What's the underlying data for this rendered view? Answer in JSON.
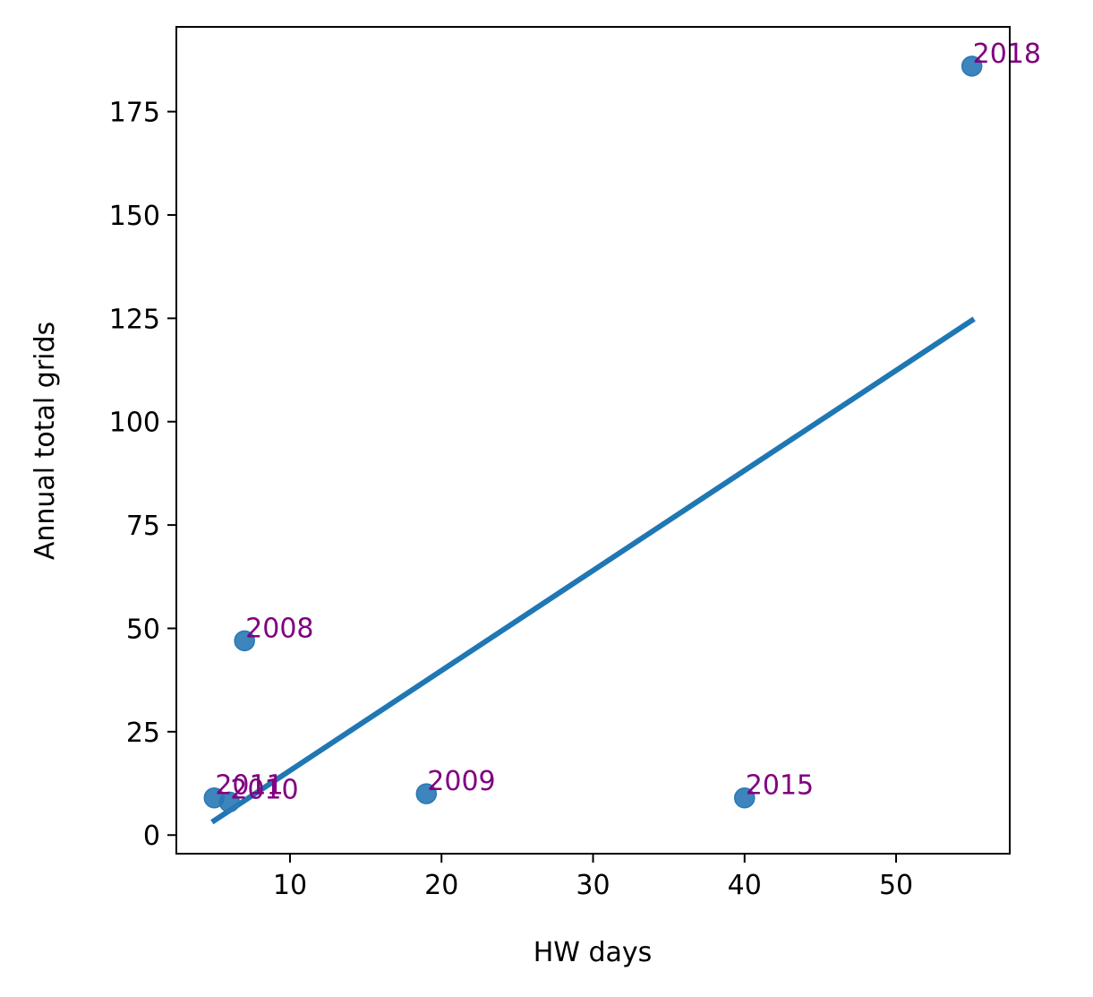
{
  "chart_data": {
    "type": "scatter",
    "title": "",
    "xlabel": "HW days",
    "ylabel": "Annual total grids",
    "xlim": [
      2.5,
      57.5
    ],
    "ylim": [
      -4.5,
      195.5
    ],
    "xticks": [
      10,
      20,
      30,
      40,
      50
    ],
    "yticks": [
      0,
      25,
      50,
      75,
      100,
      125,
      150,
      175
    ],
    "grid": false,
    "legend": "none",
    "points": [
      {
        "label": "2008",
        "x": 7,
        "y": 47
      },
      {
        "label": "2009",
        "x": 19,
        "y": 10
      },
      {
        "label": "2010",
        "x": 6,
        "y": 8
      },
      {
        "label": "2011",
        "x": 5,
        "y": 9
      },
      {
        "label": "2015",
        "x": 40,
        "y": 9
      },
      {
        "label": "2018",
        "x": 55,
        "y": 186
      }
    ],
    "fit_line": {
      "x": [
        5,
        55
      ],
      "y": [
        3.5,
        124.5
      ]
    },
    "colors": {
      "points": "#2878b5",
      "line": "#1f77b4",
      "point_labels": "#800080"
    }
  }
}
